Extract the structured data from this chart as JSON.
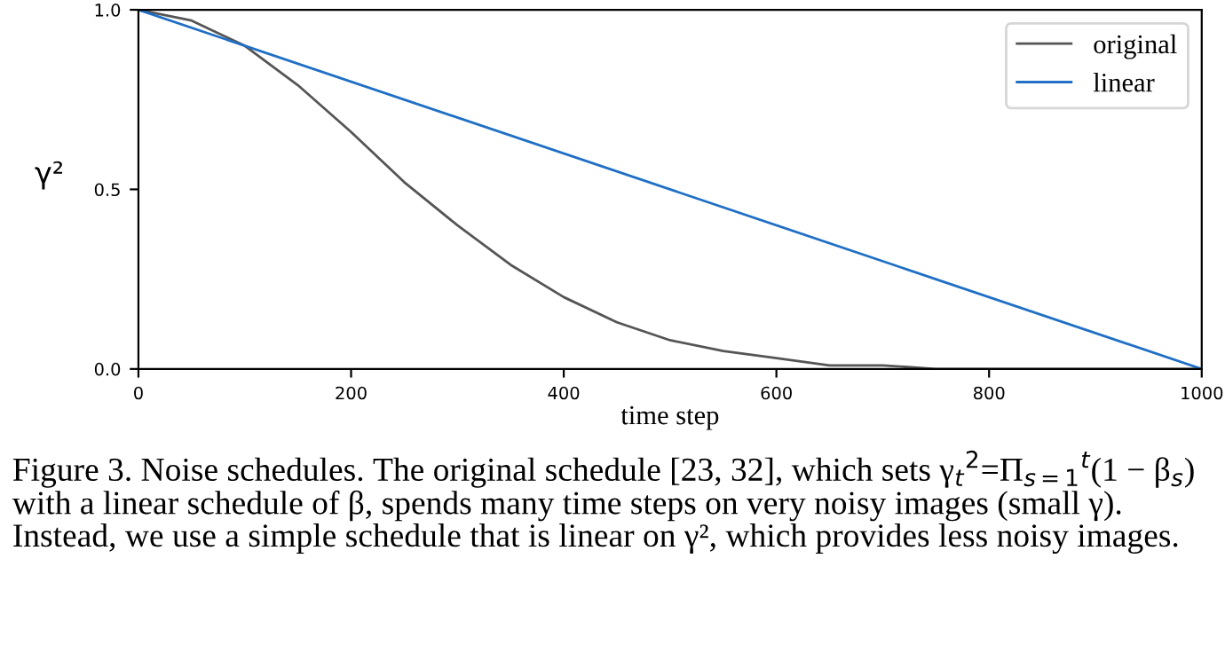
{
  "chart_data": {
    "type": "line",
    "xlabel": "time step",
    "ylabel": "γ²",
    "x": [
      0,
      50,
      100,
      150,
      200,
      250,
      300,
      350,
      400,
      450,
      500,
      550,
      600,
      650,
      700,
      750,
      800,
      850,
      900,
      950,
      1000
    ],
    "series": [
      {
        "name": "original",
        "color": "#555555",
        "values": [
          1.0,
          0.97,
          0.9,
          0.79,
          0.66,
          0.52,
          0.4,
          0.29,
          0.2,
          0.13,
          0.08,
          0.05,
          0.03,
          0.01,
          0.01,
          0.0,
          0.0,
          0.0,
          0.0,
          0.0,
          0.0
        ]
      },
      {
        "name": "linear",
        "color": "#1f6fc5",
        "x": [
          0,
          1000
        ],
        "values": [
          1.0,
          0.0
        ]
      }
    ],
    "xlim": [
      0,
      1000
    ],
    "ylim": [
      0.0,
      1.0
    ],
    "xticks": [
      0,
      200,
      400,
      600,
      800,
      1000
    ],
    "yticks": [
      {
        "value": 0,
        "label": "0.0"
      },
      {
        "value": 0.5,
        "label": "0.5"
      },
      {
        "value": 1.0,
        "label": "1.0"
      }
    ],
    "grid": false,
    "legend": "top right",
    "marker": "none",
    "line_style": "solid",
    "annotations": [
      "Figure 3. Noise schedules. The original schedule [23, 32], which sets γ$_{t}$$^{2}$=Π$_{s=1}$$^{t}$(1 − β$_{s}$) with a linear schedule of β, spends many time steps on very noisy images (small γ). Instead, we use a simple schedule that is linear on γ², which provides less noisy images."
    ]
  }
}
